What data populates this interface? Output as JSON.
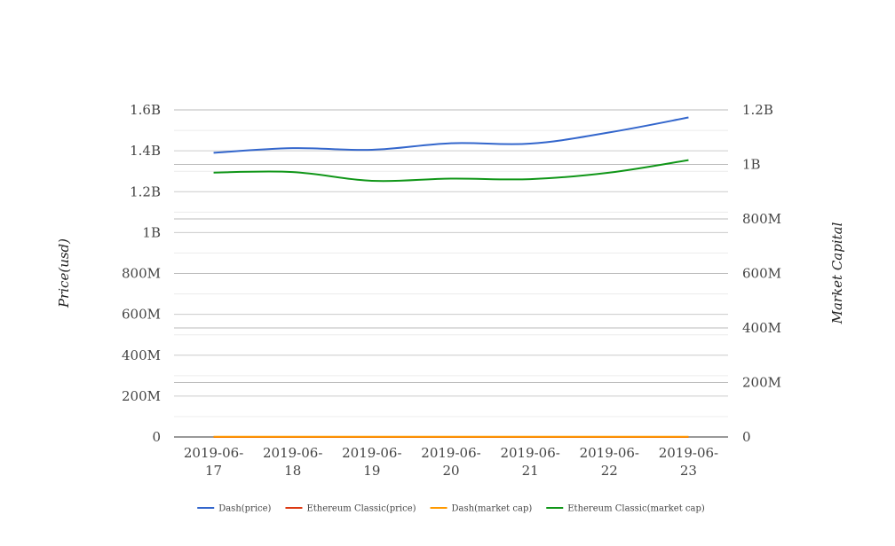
{
  "chart_data": {
    "type": "line",
    "title": "",
    "categories": [
      "2019-06-17",
      "2019-06-18",
      "2019-06-19",
      "2019-06-20",
      "2019-06-21",
      "2019-06-22",
      "2019-06-23"
    ],
    "category_lines": [
      [
        "2019-06-",
        "17"
      ],
      [
        "2019-06-",
        "18"
      ],
      [
        "2019-06-",
        "19"
      ],
      [
        "2019-06-",
        "20"
      ],
      [
        "2019-06-",
        "21"
      ],
      [
        "2019-06-",
        "22"
      ],
      [
        "2019-06-",
        "23"
      ]
    ],
    "ylabel_left": "Price(usd)",
    "ylabel_right": "Market Capital",
    "y_left": {
      "min": 0,
      "max": 1600000000,
      "ticks": [
        0,
        200000000,
        400000000,
        600000000,
        800000000,
        1000000000,
        1200000000,
        1400000000,
        1600000000
      ],
      "tick_labels": [
        "0",
        "200M",
        "400M",
        "600M",
        "800M",
        "1B",
        "1.2B",
        "1.4B",
        "1.6B"
      ]
    },
    "y_right": {
      "min": 0,
      "max": 1200000000,
      "ticks": [
        0,
        200000000,
        400000000,
        600000000,
        800000000,
        1000000000,
        1200000000
      ],
      "tick_labels": [
        "0",
        "200M",
        "400M",
        "600M",
        "800M",
        "1B",
        "1.2B"
      ]
    },
    "grid": true,
    "legend_position": "bottom",
    "series": [
      {
        "name": "Dash(price)",
        "axis": "left",
        "color": "#3366cc",
        "values": [
          1390000000,
          1413000000,
          1405000000,
          1437000000,
          1435000000,
          1490000000,
          1563000000
        ]
      },
      {
        "name": "Ethereum Classic(price)",
        "axis": "left",
        "color": "#dc3912",
        "values": [
          6,
          6,
          6,
          6,
          6,
          6,
          7
        ]
      },
      {
        "name": "Dash(market cap)",
        "axis": "left",
        "color": "#ff9900",
        "values": [
          1100000,
          1100000,
          1100000,
          1100000,
          1100000,
          1150000,
          1200000
        ]
      },
      {
        "name": "Ethereum Classic(market cap)",
        "axis": "right",
        "color": "#109618",
        "values": [
          970000000,
          972000000,
          940000000,
          948000000,
          946000000,
          970000000,
          1016000000
        ]
      }
    ]
  }
}
